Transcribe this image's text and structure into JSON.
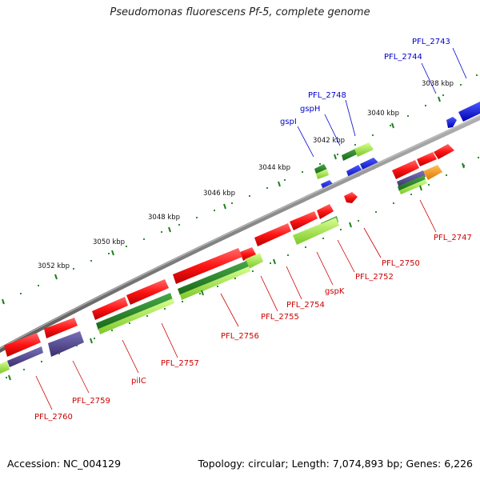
{
  "title": "Pseudomonas fluorescens Pf-5, complete genome",
  "footer": {
    "accession": "Accession: NC_004129",
    "topology": "Topology: circular; Length: 7,074,893 bp; Genes: 6,226"
  },
  "colors": {
    "backbone": "#808080",
    "forward_gene": "#ff1a1a",
    "reverse_gene": "#ff1a1a",
    "cds_band": "#90d840",
    "cds_band_dark": "#2a8a2a",
    "other_band": "#5a5090",
    "blue_feature": "#1010e0",
    "orange_feature": "#ff9a10",
    "tick": "#208020",
    "label_forward": "#0000cc",
    "label_reverse": "#cc0000"
  },
  "scale": {
    "kbp_labels": [
      "3038 kbp",
      "3040 kbp",
      "3042 kbp",
      "3044 kbp",
      "3046 kbp",
      "3048 kbp",
      "3050 kbp",
      "3052 kbp"
    ]
  },
  "labels": {
    "outer": [
      "PFL_2743",
      "PFL_2744",
      "PFL_2748",
      "gspH",
      "gspI"
    ],
    "inner": [
      "PFL_2747",
      "PFL_2750",
      "PFL_2752",
      "gspK",
      "PFL_2754",
      "PFL_2755",
      "PFL_2756",
      "PFL_2757",
      "pilC",
      "PFL_2759",
      "PFL_2760"
    ]
  }
}
